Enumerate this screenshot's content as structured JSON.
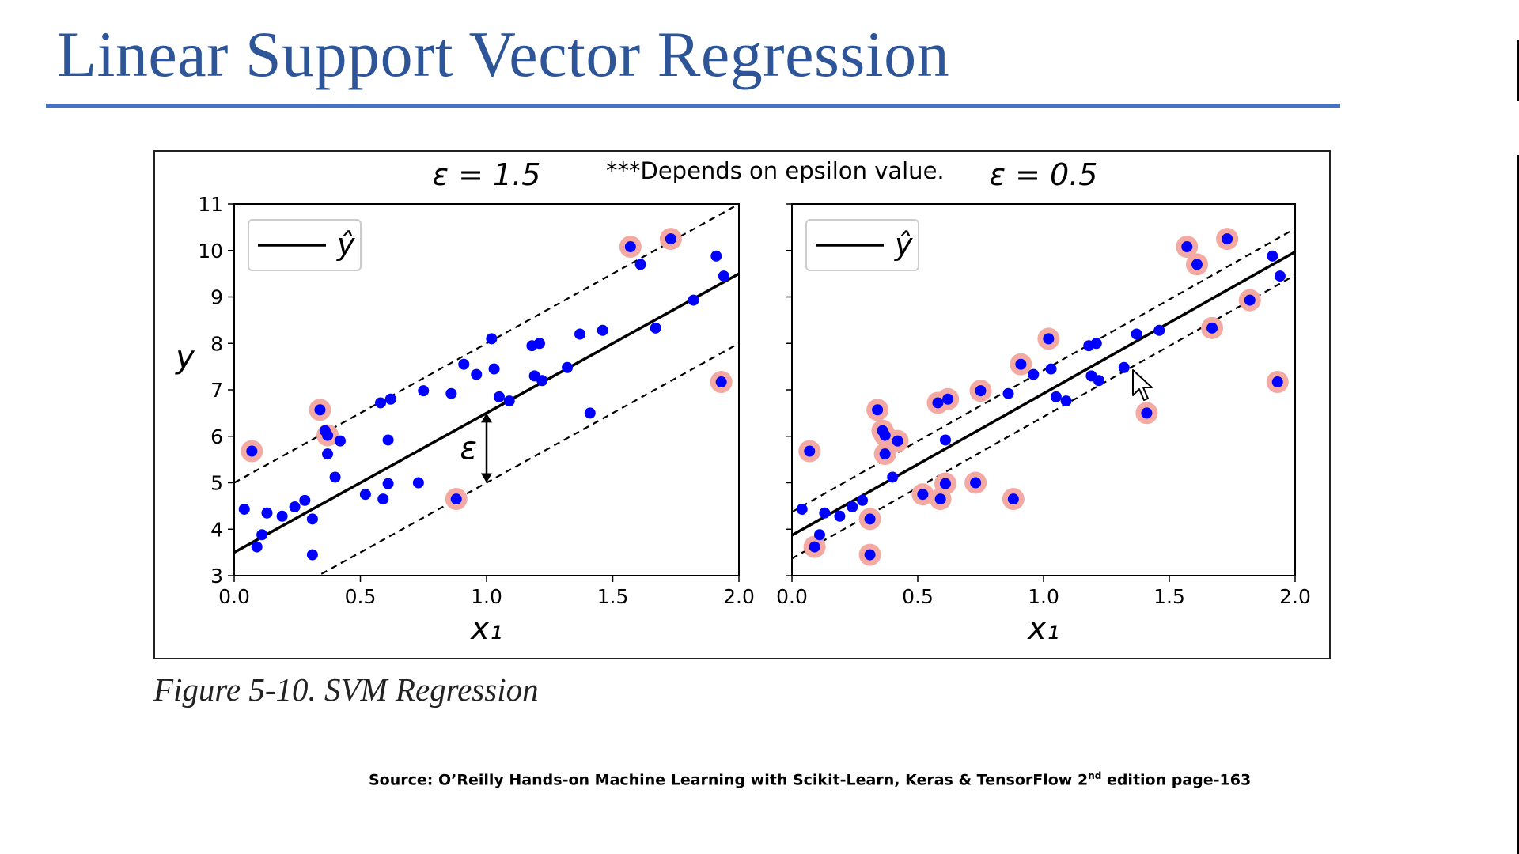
{
  "slide": {
    "title": "Linear Support Vector Regression",
    "caption": "Figure 5-10. SVM Regression",
    "source_prefix": "Source: O’Reilly  Hands-on Machine Learning with Scikit-Learn, Keras & TensorFlow 2",
    "source_sup": "nd",
    "source_suffix": " edition page-163",
    "note": "***Depends on epsilon value.",
    "colors": {
      "title": "#2d5597",
      "rule": "#4472c4",
      "point": "#0000ff",
      "support": "#f4a9a3"
    }
  },
  "chart_data": [
    {
      "type": "scatter",
      "title": "ε = 1.5",
      "xlabel": "x₁",
      "ylabel": "y",
      "xlim": [
        0,
        2
      ],
      "ylim": [
        3,
        11
      ],
      "xticks": [
        "0.0",
        "0.5",
        "1.0",
        "1.5",
        "2.0"
      ],
      "yticks": [
        "3",
        "4",
        "5",
        "6",
        "7",
        "8",
        "9",
        "10",
        "11"
      ],
      "legend": {
        "position": "top-left",
        "label": "ŷ"
      },
      "annotation": "ε",
      "regression": {
        "slope": 3.0,
        "intercept": 3.5
      },
      "epsilon": 1.5,
      "points": [
        [
          0.04,
          4.43
        ],
        [
          0.07,
          5.68
        ],
        [
          0.09,
          3.62
        ],
        [
          0.11,
          3.88
        ],
        [
          0.13,
          4.35
        ],
        [
          0.19,
          4.28
        ],
        [
          0.24,
          4.48
        ],
        [
          0.28,
          4.62
        ],
        [
          0.31,
          4.22
        ],
        [
          0.31,
          3.45
        ],
        [
          0.34,
          6.57
        ],
        [
          0.36,
          6.12
        ],
        [
          0.37,
          5.62
        ],
        [
          0.37,
          6.02
        ],
        [
          0.4,
          5.12
        ],
        [
          0.42,
          5.9
        ],
        [
          0.52,
          4.75
        ],
        [
          0.58,
          6.72
        ],
        [
          0.59,
          4.65
        ],
        [
          0.61,
          4.98
        ],
        [
          0.61,
          5.92
        ],
        [
          0.62,
          6.8
        ],
        [
          0.73,
          5.0
        ],
        [
          0.75,
          6.98
        ],
        [
          0.86,
          6.92
        ],
        [
          0.88,
          4.65
        ],
        [
          0.91,
          7.55
        ],
        [
          0.96,
          7.33
        ],
        [
          1.02,
          8.1
        ],
        [
          1.03,
          7.45
        ],
        [
          1.05,
          6.85
        ],
        [
          1.09,
          6.76
        ],
        [
          1.18,
          7.95
        ],
        [
          1.19,
          7.3
        ],
        [
          1.21,
          8.0
        ],
        [
          1.22,
          7.2
        ],
        [
          1.32,
          7.48
        ],
        [
          1.37,
          8.2
        ],
        [
          1.41,
          6.5
        ],
        [
          1.46,
          8.28
        ],
        [
          1.57,
          10.08
        ],
        [
          1.61,
          9.7
        ],
        [
          1.67,
          8.33
        ],
        [
          1.73,
          10.25
        ],
        [
          1.82,
          8.93
        ],
        [
          1.91,
          9.88
        ],
        [
          1.93,
          7.17
        ],
        [
          1.94,
          9.45
        ]
      ],
      "support_vectors": [
        [
          0.07,
          5.68
        ],
        [
          0.34,
          6.57
        ],
        [
          0.37,
          6.02
        ],
        [
          0.88,
          4.65
        ],
        [
          1.57,
          10.08
        ],
        [
          1.73,
          10.25
        ],
        [
          1.93,
          7.17
        ]
      ]
    },
    {
      "type": "scatter",
      "title": "ε = 0.5",
      "xlabel": "x₁",
      "ylabel": "",
      "xlim": [
        0,
        2
      ],
      "ylim": [
        3,
        11
      ],
      "xticks": [
        "0.0",
        "0.5",
        "1.0",
        "1.5",
        "2.0"
      ],
      "yticks": [],
      "legend": {
        "position": "top-left",
        "label": "ŷ"
      },
      "regression": {
        "slope": 3.05,
        "intercept": 3.87
      },
      "epsilon": 0.5,
      "points": [
        [
          0.04,
          4.43
        ],
        [
          0.07,
          5.68
        ],
        [
          0.09,
          3.62
        ],
        [
          0.11,
          3.88
        ],
        [
          0.13,
          4.35
        ],
        [
          0.19,
          4.28
        ],
        [
          0.24,
          4.48
        ],
        [
          0.28,
          4.62
        ],
        [
          0.31,
          4.22
        ],
        [
          0.31,
          3.45
        ],
        [
          0.34,
          6.57
        ],
        [
          0.36,
          6.12
        ],
        [
          0.37,
          5.62
        ],
        [
          0.37,
          6.02
        ],
        [
          0.4,
          5.12
        ],
        [
          0.42,
          5.9
        ],
        [
          0.52,
          4.75
        ],
        [
          0.58,
          6.72
        ],
        [
          0.59,
          4.65
        ],
        [
          0.61,
          4.98
        ],
        [
          0.61,
          5.92
        ],
        [
          0.62,
          6.8
        ],
        [
          0.73,
          5.0
        ],
        [
          0.75,
          6.98
        ],
        [
          0.86,
          6.92
        ],
        [
          0.88,
          4.65
        ],
        [
          0.91,
          7.55
        ],
        [
          0.96,
          7.33
        ],
        [
          1.02,
          8.1
        ],
        [
          1.03,
          7.45
        ],
        [
          1.05,
          6.85
        ],
        [
          1.09,
          6.76
        ],
        [
          1.18,
          7.95
        ],
        [
          1.19,
          7.3
        ],
        [
          1.21,
          8.0
        ],
        [
          1.22,
          7.2
        ],
        [
          1.32,
          7.48
        ],
        [
          1.37,
          8.2
        ],
        [
          1.41,
          6.5
        ],
        [
          1.46,
          8.28
        ],
        [
          1.57,
          10.08
        ],
        [
          1.61,
          9.7
        ],
        [
          1.67,
          8.33
        ],
        [
          1.73,
          10.25
        ],
        [
          1.82,
          8.93
        ],
        [
          1.91,
          9.88
        ],
        [
          1.93,
          7.17
        ],
        [
          1.94,
          9.45
        ]
      ],
      "support_vectors": [
        [
          0.07,
          5.68
        ],
        [
          0.09,
          3.62
        ],
        [
          0.31,
          4.22
        ],
        [
          0.31,
          3.45
        ],
        [
          0.34,
          6.57
        ],
        [
          0.36,
          6.12
        ],
        [
          0.37,
          5.62
        ],
        [
          0.37,
          6.02
        ],
        [
          0.42,
          5.9
        ],
        [
          0.52,
          4.75
        ],
        [
          0.58,
          6.72
        ],
        [
          0.59,
          4.65
        ],
        [
          0.61,
          4.98
        ],
        [
          0.62,
          6.8
        ],
        [
          0.73,
          5.0
        ],
        [
          0.75,
          6.98
        ],
        [
          0.88,
          4.65
        ],
        [
          0.91,
          7.55
        ],
        [
          1.02,
          8.1
        ],
        [
          1.41,
          6.5
        ],
        [
          1.57,
          10.08
        ],
        [
          1.61,
          9.7
        ],
        [
          1.67,
          8.33
        ],
        [
          1.73,
          10.25
        ],
        [
          1.82,
          8.93
        ],
        [
          1.93,
          7.17
        ]
      ]
    }
  ]
}
